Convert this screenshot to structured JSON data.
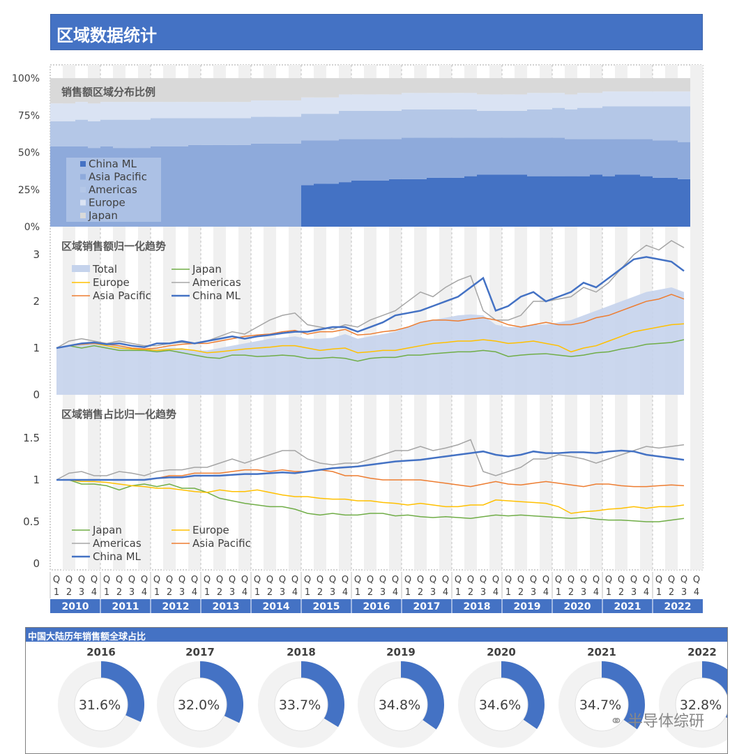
{
  "title": "区域数据统计",
  "chart_data": [
    {
      "type": "area",
      "title": "销售额区域分布比例",
      "stacked": true,
      "y_ticks": [
        "100%",
        "75%",
        "50%",
        "25%",
        "0%"
      ],
      "ylim": [
        0,
        100
      ],
      "x_start": "2010 Q1",
      "x_end": "2022 Q3",
      "legend": [
        "China ML",
        "Asia Pacific",
        "Americas",
        "Europe",
        "Japan"
      ],
      "legend_position": "bottom-left",
      "china_ml_start": "2015 Q1",
      "series": [
        {
          "name": "China ML",
          "values": [
            0,
            0,
            0,
            0,
            0,
            0,
            0,
            0,
            0,
            0,
            0,
            0,
            0,
            0,
            0,
            0,
            0,
            0,
            0,
            0,
            28,
            29,
            29,
            30,
            31,
            31,
            31,
            32,
            32,
            32,
            33,
            33,
            33,
            34,
            35,
            35,
            35,
            35,
            34,
            34,
            34,
            34,
            34,
            35,
            34,
            35,
            35,
            34,
            33,
            33,
            32
          ]
        },
        {
          "name": "Asia Pacific",
          "values": [
            54,
            54,
            54,
            53,
            54,
            53,
            53,
            53,
            54,
            54,
            54,
            55,
            55,
            55,
            55,
            55,
            56,
            56,
            56,
            56,
            30,
            29,
            29,
            29,
            28,
            28,
            28,
            27,
            28,
            28,
            27,
            27,
            27,
            26,
            25,
            25,
            25,
            25,
            26,
            26,
            26,
            25,
            25,
            24,
            25,
            24,
            24,
            25,
            25,
            25,
            25
          ]
        },
        {
          "name": "Americas",
          "values": [
            17,
            17,
            18,
            18,
            18,
            19,
            19,
            19,
            19,
            19,
            19,
            18,
            18,
            18,
            18,
            18,
            18,
            18,
            18,
            18,
            18,
            18,
            18,
            19,
            19,
            19,
            19,
            19,
            19,
            19,
            19,
            19,
            19,
            19,
            18,
            18,
            18,
            18,
            19,
            19,
            20,
            20,
            21,
            21,
            22,
            22,
            22,
            22,
            23,
            23,
            24
          ]
        },
        {
          "name": "Europe",
          "values": [
            12,
            12,
            12,
            12,
            12,
            12,
            12,
            12,
            11,
            11,
            11,
            11,
            11,
            11,
            11,
            11,
            11,
            11,
            11,
            11,
            11,
            11,
            11,
            11,
            11,
            11,
            11,
            11,
            11,
            11,
            11,
            11,
            11,
            11,
            11,
            11,
            11,
            11,
            11,
            11,
            10,
            10,
            10,
            10,
            10,
            10,
            10,
            10,
            10,
            10,
            10
          ]
        },
        {
          "name": "Japan",
          "values": [
            17,
            17,
            16,
            17,
            16,
            16,
            16,
            16,
            16,
            16,
            16,
            16,
            16,
            16,
            16,
            16,
            15,
            15,
            15,
            15,
            13,
            13,
            13,
            11,
            11,
            11,
            11,
            11,
            10,
            10,
            10,
            10,
            10,
            10,
            11,
            11,
            11,
            11,
            10,
            10,
            10,
            11,
            10,
            10,
            9,
            9,
            9,
            9,
            9,
            9,
            9
          ]
        }
      ]
    },
    {
      "type": "line",
      "title": "区域销售额归一化趋势",
      "y_ticks": [
        "3",
        "2",
        "1",
        "0"
      ],
      "ylim": [
        0,
        3.3
      ],
      "legend_position": "top-left",
      "series": [
        {
          "name": "Total",
          "kind": "area",
          "values": [
            1.0,
            1.05,
            1.1,
            1.1,
            1.08,
            1.05,
            1.0,
            0.98,
            0.98,
            1.0,
            1.0,
            0.95,
            0.95,
            1.0,
            1.05,
            1.1,
            1.15,
            1.2,
            1.22,
            1.25,
            1.2,
            1.2,
            1.22,
            1.3,
            1.2,
            1.25,
            1.3,
            1.35,
            1.45,
            1.55,
            1.6,
            1.65,
            1.7,
            1.72,
            1.7,
            1.5,
            1.45,
            1.45,
            1.5,
            1.5,
            1.55,
            1.6,
            1.7,
            1.8,
            1.9,
            2.0,
            2.1,
            2.2,
            2.25,
            2.3,
            2.2
          ]
        },
        {
          "name": "Japan",
          "values": [
            1.0,
            1.05,
            1.0,
            1.05,
            1.0,
            0.95,
            0.95,
            0.95,
            0.92,
            0.95,
            0.9,
            0.85,
            0.8,
            0.78,
            0.85,
            0.85,
            0.82,
            0.83,
            0.85,
            0.83,
            0.78,
            0.78,
            0.8,
            0.78,
            0.72,
            0.78,
            0.8,
            0.8,
            0.85,
            0.85,
            0.88,
            0.9,
            0.92,
            0.92,
            0.95,
            0.92,
            0.82,
            0.85,
            0.87,
            0.88,
            0.85,
            0.82,
            0.85,
            0.9,
            0.92,
            0.98,
            1.02,
            1.08,
            1.1,
            1.12,
            1.18
          ]
        },
        {
          "name": "Europe",
          "values": [
            1.0,
            1.05,
            1.08,
            1.1,
            1.05,
            1.0,
            0.98,
            0.97,
            0.95,
            0.97,
            0.98,
            0.95,
            0.9,
            0.92,
            0.95,
            0.98,
            1.0,
            1.02,
            1.05,
            1.05,
            1.0,
            0.95,
            0.98,
            1.0,
            0.9,
            0.92,
            0.95,
            0.95,
            1.0,
            1.05,
            1.1,
            1.12,
            1.15,
            1.15,
            1.18,
            1.15,
            1.1,
            1.12,
            1.15,
            1.1,
            1.05,
            0.92,
            1.0,
            1.05,
            1.15,
            1.25,
            1.35,
            1.4,
            1.45,
            1.5,
            1.52
          ]
        },
        {
          "name": "Americas",
          "values": [
            1.0,
            1.15,
            1.2,
            1.15,
            1.1,
            1.15,
            1.1,
            1.05,
            1.05,
            1.1,
            1.12,
            1.1,
            1.15,
            1.25,
            1.35,
            1.3,
            1.45,
            1.6,
            1.7,
            1.75,
            1.5,
            1.45,
            1.4,
            1.5,
            1.45,
            1.6,
            1.7,
            1.8,
            2.0,
            2.2,
            2.1,
            2.3,
            2.45,
            2.55,
            1.8,
            1.6,
            1.6,
            1.7,
            2.0,
            2.0,
            2.05,
            2.1,
            2.3,
            2.2,
            2.4,
            2.7,
            3.0,
            3.2,
            3.1,
            3.3,
            3.15
          ]
        },
        {
          "name": "Asia Pacific",
          "values": [
            1.0,
            1.05,
            1.08,
            1.1,
            1.08,
            1.05,
            1.0,
            0.98,
            1.0,
            1.05,
            1.08,
            1.1,
            1.1,
            1.15,
            1.2,
            1.25,
            1.28,
            1.3,
            1.35,
            1.38,
            1.3,
            1.35,
            1.35,
            1.4,
            1.28,
            1.3,
            1.35,
            1.38,
            1.45,
            1.55,
            1.6,
            1.6,
            1.58,
            1.62,
            1.65,
            1.6,
            1.5,
            1.45,
            1.5,
            1.55,
            1.5,
            1.5,
            1.55,
            1.65,
            1.7,
            1.8,
            1.9,
            2.0,
            2.05,
            2.15,
            2.05
          ]
        },
        {
          "name": "China ML",
          "values": [
            1.0,
            1.05,
            1.1,
            1.12,
            1.08,
            1.1,
            1.05,
            1.02,
            1.1,
            1.1,
            1.15,
            1.1,
            1.15,
            1.2,
            1.25,
            1.2,
            1.25,
            1.28,
            1.32,
            1.35,
            1.35,
            1.4,
            1.45,
            1.45,
            1.35,
            1.45,
            1.55,
            1.7,
            1.75,
            1.8,
            1.9,
            2.0,
            2.1,
            2.3,
            2.5,
            1.8,
            1.9,
            2.1,
            2.2,
            2.0,
            2.1,
            2.2,
            2.4,
            2.3,
            2.5,
            2.7,
            2.9,
            2.95,
            2.9,
            2.85,
            2.65
          ]
        }
      ]
    },
    {
      "type": "line",
      "title": "区域销售占比归一化趋势",
      "y_ticks": [
        "1.5",
        "1",
        "0.5",
        "0"
      ],
      "ylim": [
        0,
        1.65
      ],
      "legend_position": "bottom-left",
      "series": [
        {
          "name": "Japan",
          "values": [
            1.0,
            1.0,
            0.95,
            0.95,
            0.93,
            0.88,
            0.93,
            0.95,
            0.92,
            0.95,
            0.9,
            0.9,
            0.85,
            0.78,
            0.75,
            0.72,
            0.7,
            0.68,
            0.68,
            0.65,
            0.6,
            0.58,
            0.6,
            0.58,
            0.58,
            0.6,
            0.6,
            0.57,
            0.58,
            0.56,
            0.55,
            0.56,
            0.55,
            0.54,
            0.56,
            0.58,
            0.57,
            0.58,
            0.57,
            0.56,
            0.55,
            0.54,
            0.55,
            0.53,
            0.52,
            0.52,
            0.51,
            0.5,
            0.5,
            0.52,
            0.54
          ]
        },
        {
          "name": "Europe",
          "values": [
            1.0,
            1.0,
            0.98,
            0.98,
            0.97,
            0.95,
            0.93,
            0.92,
            0.9,
            0.9,
            0.88,
            0.86,
            0.85,
            0.88,
            0.86,
            0.86,
            0.88,
            0.85,
            0.82,
            0.8,
            0.8,
            0.78,
            0.77,
            0.77,
            0.75,
            0.75,
            0.73,
            0.72,
            0.7,
            0.72,
            0.7,
            0.68,
            0.68,
            0.7,
            0.7,
            0.76,
            0.75,
            0.74,
            0.73,
            0.72,
            0.68,
            0.6,
            0.62,
            0.63,
            0.65,
            0.66,
            0.68,
            0.66,
            0.68,
            0.68,
            0.7
          ]
        },
        {
          "name": "Americas",
          "values": [
            1.0,
            1.08,
            1.1,
            1.05,
            1.05,
            1.1,
            1.08,
            1.05,
            1.1,
            1.12,
            1.12,
            1.15,
            1.15,
            1.2,
            1.25,
            1.2,
            1.25,
            1.3,
            1.35,
            1.35,
            1.25,
            1.2,
            1.18,
            1.2,
            1.2,
            1.25,
            1.3,
            1.35,
            1.35,
            1.4,
            1.35,
            1.38,
            1.42,
            1.48,
            1.1,
            1.05,
            1.1,
            1.15,
            1.25,
            1.25,
            1.3,
            1.28,
            1.25,
            1.2,
            1.25,
            1.3,
            1.35,
            1.4,
            1.38,
            1.4,
            1.42
          ]
        },
        {
          "name": "Asia Pacific",
          "values": [
            1.0,
            1.0,
            1.0,
            1.0,
            1.0,
            1.0,
            1.0,
            1.0,
            1.02,
            1.05,
            1.05,
            1.08,
            1.08,
            1.08,
            1.1,
            1.12,
            1.12,
            1.1,
            1.12,
            1.1,
            1.1,
            1.12,
            1.1,
            1.05,
            1.05,
            1.02,
            1.0,
            1.0,
            1.0,
            1.0,
            0.98,
            0.96,
            0.94,
            0.92,
            0.95,
            0.98,
            0.95,
            0.94,
            0.96,
            0.98,
            0.96,
            0.94,
            0.92,
            0.95,
            0.95,
            0.93,
            0.92,
            0.92,
            0.93,
            0.94,
            0.93
          ]
        },
        {
          "name": "China ML",
          "values": [
            1.0,
            1.0,
            1.0,
            1.0,
            1.0,
            1.0,
            1.0,
            1.0,
            1.02,
            1.03,
            1.03,
            1.05,
            1.05,
            1.05,
            1.06,
            1.07,
            1.07,
            1.08,
            1.09,
            1.08,
            1.1,
            1.12,
            1.14,
            1.15,
            1.16,
            1.18,
            1.2,
            1.22,
            1.23,
            1.24,
            1.26,
            1.28,
            1.3,
            1.32,
            1.34,
            1.3,
            1.28,
            1.3,
            1.34,
            1.32,
            1.32,
            1.33,
            1.33,
            1.32,
            1.34,
            1.35,
            1.34,
            1.3,
            1.28,
            1.26,
            1.24
          ]
        }
      ]
    },
    {
      "type": "pie",
      "title": "中国大陆历年销售额全球占比",
      "categories": [
        "2016",
        "2017",
        "2018",
        "2019",
        "2020",
        "2021",
        "2022"
      ],
      "values": [
        31.6,
        32.0,
        33.7,
        34.8,
        34.6,
        34.7,
        32.8
      ],
      "labels": [
        "31.6%",
        "32.0%",
        "33.7%",
        "34.8%",
        "34.6%",
        "34.7%",
        "32.8%"
      ]
    }
  ],
  "x_axis": {
    "quarter_letter": "Q",
    "quarters": [
      "1",
      "2",
      "3",
      "4"
    ],
    "years": [
      "2010",
      "2011",
      "2012",
      "2013",
      "2014",
      "2015",
      "2016",
      "2017",
      "2018",
      "2019",
      "2020",
      "2021",
      "2022"
    ]
  },
  "watermark": {
    "text": "半导体综研",
    "icon": "wechat-icon"
  },
  "colors": {
    "accent": "#4472c4",
    "china_ml": "#4472c4",
    "asia_pacific": "#8eaadb",
    "americas": "#b4c7e7",
    "europe": "#dae3f3",
    "japan": "#d9d9d9",
    "total_fill": "#c5d3ec",
    "japan_line": "#70ad47",
    "europe_line": "#ffc000",
    "americas_line": "#a5a5a5",
    "asia_line": "#ed7d31",
    "china_line": "#4472c4"
  }
}
